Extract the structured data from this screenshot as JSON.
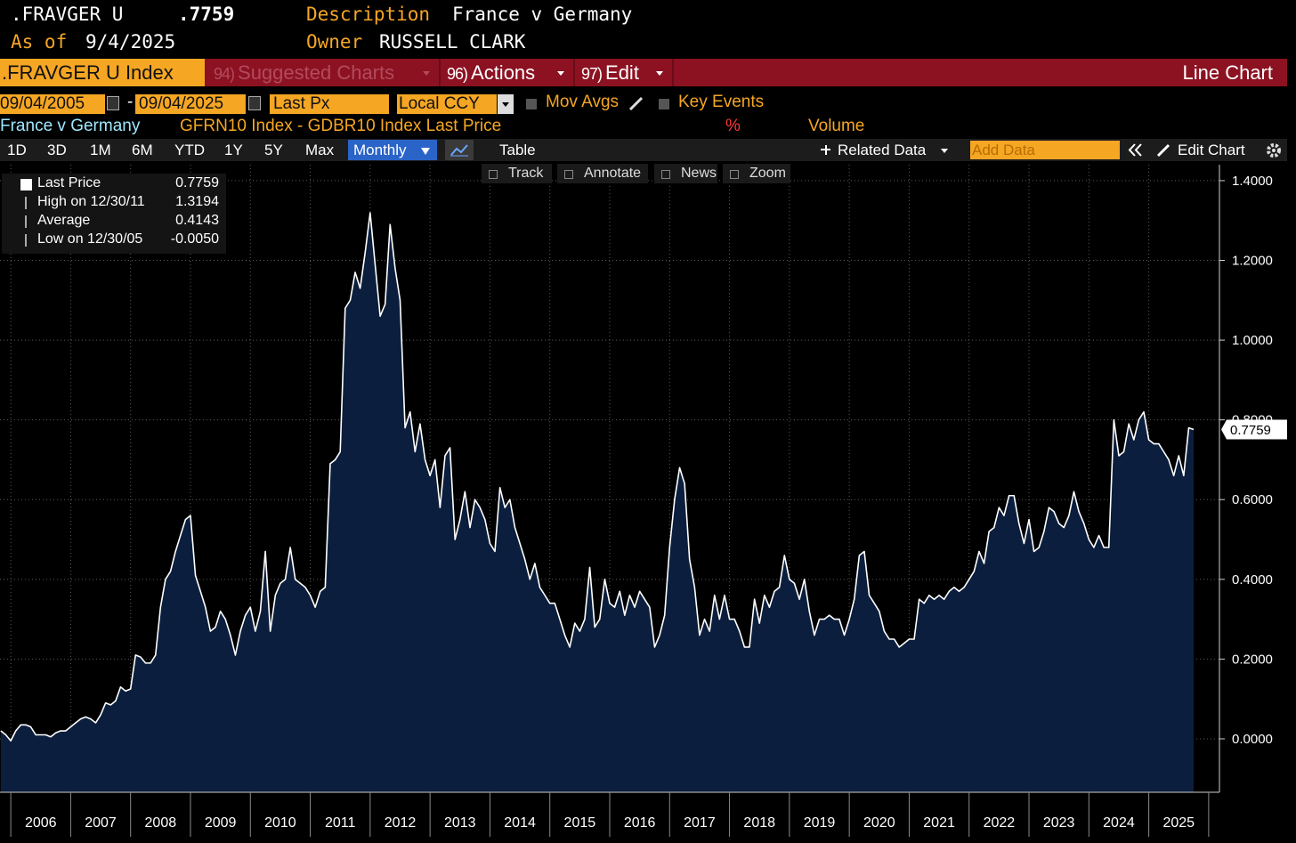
{
  "header": {
    "ticker": ".FRAVGER U",
    "price": ".7759",
    "as_of_label": "As of",
    "as_of": "9/4/2025",
    "description_label": "Description",
    "description": "France v Germany",
    "owner_label": "Owner",
    "owner": "RUSSELL CLARK"
  },
  "menu": {
    "security": ".FRAVGER U Index",
    "items": [
      {
        "num": "94)",
        "label": "Suggested Charts"
      },
      {
        "num": "96)",
        "label": "Actions"
      },
      {
        "num": "97)",
        "label": "Edit"
      }
    ],
    "view": "Line Chart"
  },
  "controls": {
    "start": "09/04/2005",
    "separator": "-",
    "end": "09/04/2025",
    "field": "Last Px",
    "currency": "Local CCY",
    "options": [
      "Mov Avgs",
      "Key Events"
    ]
  },
  "info_row": {
    "unit": "%",
    "volume": "Volume"
  },
  "toolbar": {
    "ranges": [
      "1D",
      "3D",
      "1M",
      "6M",
      "YTD",
      "1Y",
      "5Y",
      "Max"
    ],
    "frequency": "Monthly",
    "table": "Table",
    "related": "Related Data",
    "add_data": "Add Data",
    "edit": "Edit Chart"
  },
  "tools": [
    "Track",
    "Annotate",
    "News",
    "Zoom"
  ],
  "stats": [
    {
      "label": "Last Price",
      "value": "0.7759"
    },
    {
      "label": "High on 12/30/11",
      "value": "1.3194"
    },
    {
      "label": "Average",
      "value": "0.4143"
    },
    {
      "label": "Low on 12/30/05",
      "value": "-0.0050"
    }
  ],
  "chart_data": {
    "type": "line",
    "title": "France v Germany",
    "subtitle": "GFRN10 Index - GDBR10 Index Last Price",
    "xlim": [
      2005.82,
      2026.18
    ],
    "xticks": [
      2006,
      2007,
      2008,
      2009,
      2010,
      2011,
      2012,
      2013,
      2014,
      2015,
      2016,
      2017,
      2018,
      2019,
      2020,
      2021,
      2022,
      2023,
      2024,
      2025
    ],
    "ylim": [
      -0.134,
      1.44
    ],
    "yticks": [
      {
        "value": 0,
        "label": "0.0000"
      },
      {
        "value": 0.2,
        "label": "0.2000"
      },
      {
        "value": 0.4,
        "label": "0.4000"
      },
      {
        "value": 0.6,
        "label": "0.6000"
      },
      {
        "value": 0.8,
        "label": "0.8000"
      },
      {
        "value": 1.0,
        "label": "1.0000"
      },
      {
        "value": 1.2,
        "label": "1.2000"
      },
      {
        "value": 1.4,
        "label": "1.4000"
      }
    ],
    "grid": true,
    "fill": "#0b1e3d",
    "x": [
      2005.833,
      2005.917,
      2006,
      2006.083,
      2006.167,
      2006.25,
      2006.333,
      2006.417,
      2006.5,
      2006.583,
      2006.667,
      2006.75,
      2006.833,
      2006.917,
      2007,
      2007.083,
      2007.167,
      2007.25,
      2007.333,
      2007.417,
      2007.5,
      2007.583,
      2007.667,
      2007.75,
      2007.833,
      2007.917,
      2008,
      2008.083,
      2008.167,
      2008.25,
      2008.333,
      2008.417,
      2008.5,
      2008.583,
      2008.667,
      2008.75,
      2008.833,
      2008.917,
      2009,
      2009.083,
      2009.167,
      2009.25,
      2009.333,
      2009.417,
      2009.5,
      2009.583,
      2009.667,
      2009.75,
      2009.833,
      2009.917,
      2010,
      2010.083,
      2010.167,
      2010.25,
      2010.333,
      2010.417,
      2010.5,
      2010.583,
      2010.667,
      2010.75,
      2010.833,
      2010.917,
      2011,
      2011.083,
      2011.167,
      2011.25,
      2011.333,
      2011.417,
      2011.5,
      2011.583,
      2011.667,
      2011.75,
      2011.833,
      2011.917,
      2012,
      2012.083,
      2012.167,
      2012.25,
      2012.333,
      2012.417,
      2012.5,
      2012.583,
      2012.667,
      2012.75,
      2012.833,
      2012.917,
      2013,
      2013.083,
      2013.167,
      2013.25,
      2013.333,
      2013.417,
      2013.5,
      2013.583,
      2013.667,
      2013.75,
      2013.833,
      2013.917,
      2014,
      2014.083,
      2014.167,
      2014.25,
      2014.333,
      2014.417,
      2014.5,
      2014.583,
      2014.667,
      2014.75,
      2014.833,
      2014.917,
      2015,
      2015.083,
      2015.167,
      2015.25,
      2015.333,
      2015.417,
      2015.5,
      2015.583,
      2015.667,
      2015.75,
      2015.833,
      2015.917,
      2016,
      2016.083,
      2016.167,
      2016.25,
      2016.333,
      2016.417,
      2016.5,
      2016.583,
      2016.667,
      2016.75,
      2016.833,
      2016.917,
      2017,
      2017.083,
      2017.167,
      2017.25,
      2017.333,
      2017.417,
      2017.5,
      2017.583,
      2017.667,
      2017.75,
      2017.833,
      2017.917,
      2018,
      2018.083,
      2018.167,
      2018.25,
      2018.333,
      2018.417,
      2018.5,
      2018.583,
      2018.667,
      2018.75,
      2018.833,
      2018.917,
      2019,
      2019.083,
      2019.167,
      2019.25,
      2019.333,
      2019.417,
      2019.5,
      2019.583,
      2019.667,
      2019.75,
      2019.833,
      2019.917,
      2020,
      2020.083,
      2020.167,
      2020.25,
      2020.333,
      2020.417,
      2020.5,
      2020.583,
      2020.667,
      2020.75,
      2020.833,
      2020.917,
      2021,
      2021.083,
      2021.167,
      2021.25,
      2021.333,
      2021.417,
      2021.5,
      2021.583,
      2021.667,
      2021.75,
      2021.833,
      2021.917,
      2022,
      2022.083,
      2022.167,
      2022.25,
      2022.333,
      2022.417,
      2022.5,
      2022.583,
      2022.667,
      2022.75,
      2022.833,
      2022.917,
      2023,
      2023.083,
      2023.167,
      2023.25,
      2023.333,
      2023.417,
      2023.5,
      2023.583,
      2023.667,
      2023.75,
      2023.833,
      2023.917,
      2024,
      2024.083,
      2024.167,
      2024.25,
      2024.333,
      2024.417,
      2024.5,
      2024.583,
      2024.667,
      2024.75,
      2024.833,
      2024.917,
      2025,
      2025.083,
      2025.167,
      2025.25,
      2025.333,
      2025.417,
      2025.5,
      2025.583,
      2025.667,
      2025.75
    ],
    "series": [
      {
        "name": "Last Price",
        "color": "#ffffff",
        "values": [
          0.02,
          0.01,
          -0.005,
          0.02,
          0.035,
          0.035,
          0.03,
          0.01,
          0.01,
          0.01,
          0.005,
          0.015,
          0.02,
          0.02,
          0.03,
          0.04,
          0.05,
          0.055,
          0.05,
          0.04,
          0.06,
          0.09,
          0.085,
          0.095,
          0.13,
          0.12,
          0.125,
          0.21,
          0.205,
          0.19,
          0.19,
          0.21,
          0.33,
          0.4,
          0.42,
          0.47,
          0.51,
          0.55,
          0.56,
          0.41,
          0.37,
          0.33,
          0.27,
          0.28,
          0.32,
          0.3,
          0.26,
          0.21,
          0.27,
          0.31,
          0.33,
          0.27,
          0.32,
          0.47,
          0.27,
          0.36,
          0.39,
          0.4,
          0.48,
          0.4,
          0.39,
          0.38,
          0.36,
          0.33,
          0.37,
          0.38,
          0.69,
          0.7,
          0.72,
          1.08,
          1.1,
          1.17,
          1.13,
          1.22,
          1.3194,
          1.19,
          1.06,
          1.09,
          1.29,
          1.18,
          1.1,
          0.78,
          0.82,
          0.72,
          0.79,
          0.7,
          0.66,
          0.7,
          0.58,
          0.71,
          0.73,
          0.5,
          0.55,
          0.62,
          0.53,
          0.6,
          0.58,
          0.55,
          0.49,
          0.47,
          0.63,
          0.58,
          0.6,
          0.53,
          0.49,
          0.45,
          0.4,
          0.44,
          0.38,
          0.36,
          0.34,
          0.34,
          0.3,
          0.26,
          0.23,
          0.29,
          0.27,
          0.3,
          0.43,
          0.28,
          0.3,
          0.4,
          0.34,
          0.33,
          0.37,
          0.31,
          0.36,
          0.33,
          0.37,
          0.35,
          0.33,
          0.23,
          0.26,
          0.31,
          0.48,
          0.6,
          0.68,
          0.64,
          0.45,
          0.38,
          0.26,
          0.3,
          0.27,
          0.36,
          0.3,
          0.36,
          0.3,
          0.3,
          0.27,
          0.23,
          0.23,
          0.35,
          0.29,
          0.36,
          0.33,
          0.37,
          0.38,
          0.46,
          0.4,
          0.39,
          0.35,
          0.4,
          0.32,
          0.26,
          0.3,
          0.3,
          0.31,
          0.3,
          0.3,
          0.26,
          0.3,
          0.35,
          0.46,
          0.47,
          0.36,
          0.34,
          0.32,
          0.27,
          0.25,
          0.25,
          0.23,
          0.24,
          0.25,
          0.25,
          0.35,
          0.34,
          0.36,
          0.35,
          0.36,
          0.35,
          0.37,
          0.38,
          0.37,
          0.38,
          0.4,
          0.42,
          0.47,
          0.44,
          0.52,
          0.53,
          0.58,
          0.56,
          0.61,
          0.61,
          0.54,
          0.49,
          0.55,
          0.47,
          0.48,
          0.52,
          0.58,
          0.57,
          0.54,
          0.53,
          0.56,
          0.62,
          0.57,
          0.54,
          0.5,
          0.48,
          0.51,
          0.48,
          0.48,
          0.8,
          0.71,
          0.72,
          0.79,
          0.75,
          0.8,
          0.82,
          0.75,
          0.74,
          0.74,
          0.72,
          0.7,
          0.66,
          0.71,
          0.66,
          0.78,
          0.7759
        ]
      }
    ]
  }
}
